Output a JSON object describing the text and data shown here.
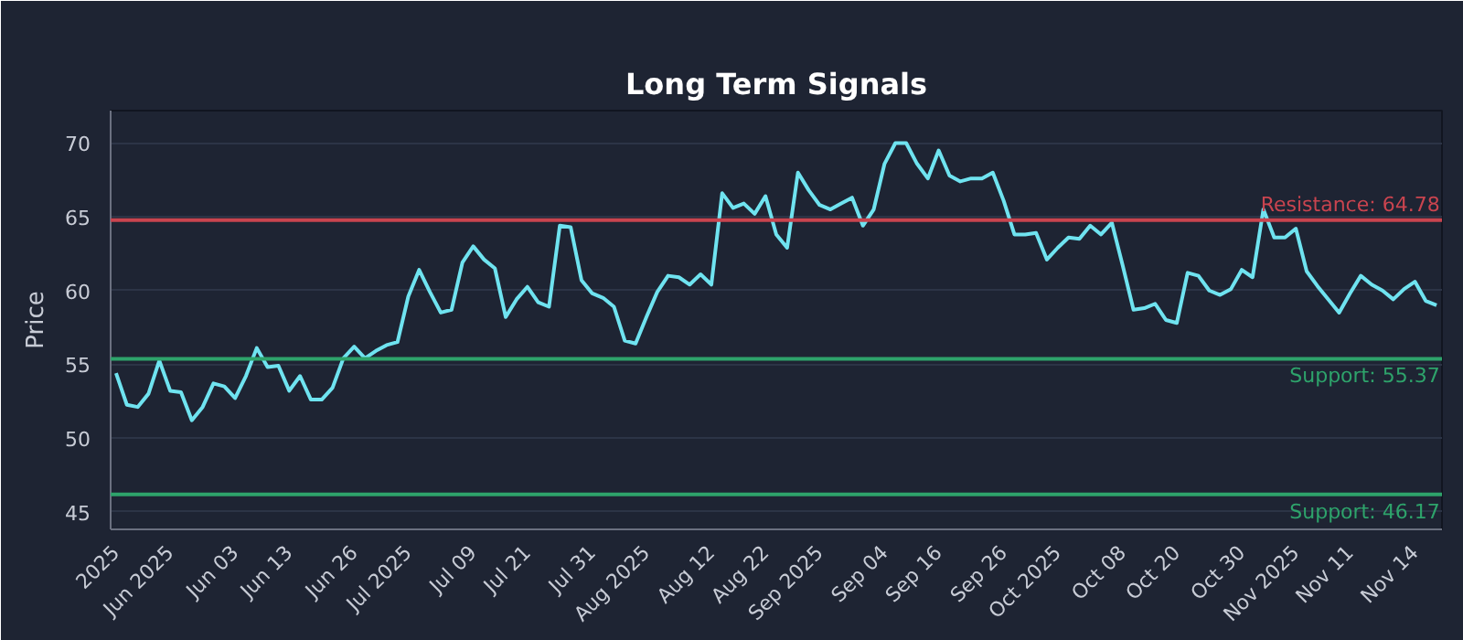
{
  "chart_data": {
    "type": "line",
    "title": "Long Term Signals",
    "ylabel": "Price",
    "categories": [
      "2025",
      null,
      null,
      null,
      null,
      "Jun 2025",
      null,
      null,
      null,
      null,
      null,
      "Jun 03",
      null,
      null,
      null,
      null,
      "Jun 13",
      null,
      null,
      null,
      null,
      null,
      "Jun 26",
      null,
      null,
      null,
      null,
      "Jul 2025",
      null,
      null,
      null,
      null,
      null,
      "Jul 09",
      null,
      null,
      null,
      null,
      "Jul 21",
      null,
      null,
      null,
      null,
      null,
      "Jul 31",
      null,
      null,
      null,
      null,
      "Aug 2025",
      null,
      null,
      null,
      null,
      null,
      "Aug 12",
      null,
      null,
      null,
      null,
      "Aug 22",
      null,
      null,
      null,
      null,
      "Sep 2025",
      null,
      null,
      null,
      null,
      null,
      "Sep 04",
      null,
      null,
      null,
      null,
      "Sep 16",
      null,
      null,
      null,
      null,
      null,
      "Sep 26",
      null,
      null,
      null,
      null,
      "Oct 2025",
      null,
      null,
      null,
      null,
      null,
      "Oct 08",
      null,
      null,
      null,
      null,
      "Oct 20",
      null,
      null,
      null,
      null,
      null,
      "Oct 30",
      null,
      null,
      null,
      null,
      "Nov 2025",
      null,
      null,
      null,
      null,
      "Nov 11",
      null,
      null,
      null,
      null,
      null,
      "Nov 14",
      null,
      null
    ],
    "series": [
      {
        "color": "#6fe3f0",
        "values": [
          54.4,
          52.25,
          52.1,
          53.0,
          55.25,
          53.2,
          53.1,
          51.2,
          52.1,
          53.7,
          53.5,
          52.7,
          54.2,
          56.1,
          54.8,
          54.9,
          53.2,
          54.2,
          52.6,
          52.6,
          53.4,
          55.4,
          56.2,
          55.4,
          55.9,
          56.3,
          56.5,
          59.6,
          61.4,
          59.9,
          58.5,
          58.7,
          61.9,
          63.0,
          62.1,
          61.5,
          58.2,
          59.4,
          60.25,
          59.2,
          58.9,
          64.4,
          64.3,
          60.7,
          59.8,
          59.5,
          58.9,
          56.6,
          56.4,
          58.2,
          59.9,
          61.0,
          60.9,
          60.4,
          61.1,
          60.4,
          66.6,
          65.6,
          65.9,
          65.2,
          66.4,
          63.8,
          62.9,
          68.0,
          66.8,
          65.8,
          65.5,
          65.9,
          66.3,
          64.4,
          65.5,
          68.6,
          70.0,
          70.0,
          68.6,
          67.6,
          69.5,
          67.8,
          67.4,
          67.6,
          67.6,
          68.0,
          66.1,
          63.8,
          63.8,
          63.9,
          62.1,
          62.9,
          63.6,
          63.5,
          64.4,
          63.8,
          64.6,
          61.7,
          58.7,
          58.8,
          59.1,
          58.0,
          57.8,
          61.2,
          61.0,
          60.0,
          59.7,
          60.1,
          61.4,
          60.9,
          65.5,
          63.6,
          63.6,
          64.2,
          61.3,
          60.3,
          59.4,
          58.5,
          59.8,
          61.0,
          60.4,
          60.0,
          59.4,
          60.1,
          60.6,
          59.3,
          59.0
        ]
      }
    ],
    "ylim": [
      43.8,
      72.2
    ],
    "yticks": [
      45,
      50,
      55,
      60,
      65,
      70
    ],
    "grid": "y",
    "marker": "none",
    "line_style": "solid",
    "ref_lines": [
      {
        "axis": "y",
        "value": 64.78,
        "label": "Resistance: 64.78",
        "color": "#c9444f"
      },
      {
        "axis": "y",
        "value": 55.37,
        "label": "Support: 55.37",
        "color": "#2ea36b"
      },
      {
        "axis": "y",
        "value": 46.17,
        "label": "Support: 46.17",
        "color": "#2ea36b"
      }
    ]
  }
}
